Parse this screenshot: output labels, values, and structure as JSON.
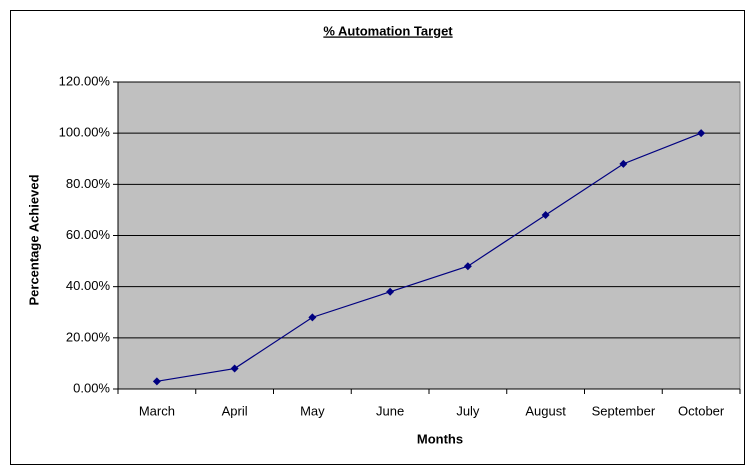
{
  "chart_data": {
    "type": "line",
    "title": "% Automation Target",
    "x_label": "Months",
    "y_label": "Percentage Achieved",
    "categories": [
      "March",
      "April",
      "May",
      "June",
      "July",
      "August",
      "September",
      "October"
    ],
    "series": [
      {
        "name": "% Automation Target",
        "color": "#000080",
        "values": [
          3,
          8,
          28,
          38,
          48,
          68,
          88,
          100
        ]
      }
    ],
    "ylim": [
      0,
      120
    ],
    "yticks": [
      {
        "value": 0,
        "label": "0.00%"
      },
      {
        "value": 20,
        "label": "20.00%"
      },
      {
        "value": 40,
        "label": "40.00%"
      },
      {
        "value": 60,
        "label": "60.00%"
      },
      {
        "value": 80,
        "label": "80.00%"
      },
      {
        "value": 100,
        "label": "100.00%"
      },
      {
        "value": 120,
        "label": "120.00%"
      }
    ],
    "grid": true,
    "plot_background": "#c0c0c0"
  }
}
